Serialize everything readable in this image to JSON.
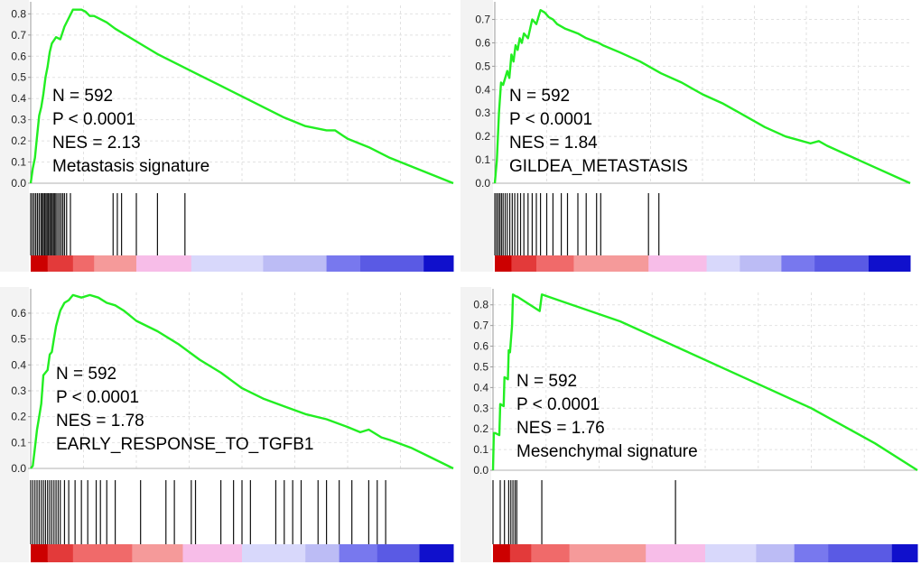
{
  "chart_data": [
    {
      "type": "line",
      "title": "",
      "xlabel": "",
      "ylabel": "",
      "ylim": [
        0,
        0.84
      ],
      "yticks": [
        0.0,
        0.1,
        0.2,
        0.3,
        0.4,
        0.5,
        0.6,
        0.7,
        0.8
      ],
      "xlim": [
        0,
        1
      ],
      "grid": true,
      "line_color": "#22ee22",
      "annotations": [
        "N = 592",
        "P < 0.0001",
        "NES = 2.13",
        "Metastasis signature"
      ],
      "series": [
        {
          "values_x": [
            0.0,
            0.005,
            0.01,
            0.015,
            0.02,
            0.025,
            0.03,
            0.035,
            0.04,
            0.045,
            0.05,
            0.06,
            0.07,
            0.08,
            0.09,
            0.1,
            0.11,
            0.12,
            0.13,
            0.14,
            0.15,
            0.16,
            0.18,
            0.2,
            0.25,
            0.3,
            0.35,
            0.4,
            0.45,
            0.5,
            0.55,
            0.6,
            0.65,
            0.7,
            0.72,
            0.75,
            0.8,
            0.85,
            0.9,
            0.95,
            1.0
          ],
          "values_y": [
            0.0,
            0.07,
            0.12,
            0.22,
            0.32,
            0.36,
            0.42,
            0.5,
            0.55,
            0.62,
            0.66,
            0.69,
            0.68,
            0.74,
            0.78,
            0.82,
            0.82,
            0.82,
            0.81,
            0.79,
            0.79,
            0.78,
            0.76,
            0.73,
            0.67,
            0.61,
            0.56,
            0.51,
            0.46,
            0.41,
            0.36,
            0.31,
            0.27,
            0.25,
            0.25,
            0.21,
            0.17,
            0.12,
            0.08,
            0.04,
            0.0
          ]
        }
      ],
      "hits": [
        0.0,
        0.004,
        0.008,
        0.012,
        0.016,
        0.02,
        0.024,
        0.027,
        0.03,
        0.033,
        0.036,
        0.039,
        0.042,
        0.045,
        0.048,
        0.051,
        0.054,
        0.057,
        0.06,
        0.064,
        0.068,
        0.072,
        0.076,
        0.08,
        0.085,
        0.094,
        0.195,
        0.205,
        0.215,
        0.25,
        0.3,
        0.365
      ],
      "colorbar": [
        "#cc0000",
        "#e33a3a",
        "#f06a6a",
        "#f59a9a",
        "#f7bde8",
        "#d8d8fb",
        "#bcbcf5",
        "#7878ee",
        "#5a5ae4",
        "#1010cc"
      ],
      "colorbar_breaks": [
        0.0,
        0.04,
        0.1,
        0.15,
        0.25,
        0.38,
        0.55,
        0.7,
        0.78,
        0.93,
        1.0
      ]
    },
    {
      "type": "line",
      "title": "",
      "xlabel": "",
      "ylabel": "",
      "ylim": [
        0,
        0.76
      ],
      "yticks": [
        0.0,
        0.1,
        0.2,
        0.3,
        0.4,
        0.5,
        0.6,
        0.7
      ],
      "xlim": [
        0,
        1
      ],
      "grid": true,
      "line_color": "#22ee22",
      "annotations": [
        "N = 592",
        "P < 0.0001",
        "NES = 1.84",
        "GILDEA_METASTASIS"
      ],
      "series": [
        {
          "values_x": [
            0.0,
            0.005,
            0.01,
            0.015,
            0.02,
            0.03,
            0.035,
            0.04,
            0.045,
            0.05,
            0.055,
            0.06,
            0.065,
            0.07,
            0.08,
            0.09,
            0.1,
            0.11,
            0.12,
            0.13,
            0.14,
            0.15,
            0.16,
            0.17,
            0.2,
            0.22,
            0.25,
            0.26,
            0.3,
            0.35,
            0.4,
            0.45,
            0.5,
            0.55,
            0.6,
            0.65,
            0.7,
            0.74,
            0.76,
            0.78,
            0.8,
            0.9,
            1.0
          ],
          "values_y": [
            0.0,
            0.1,
            0.3,
            0.43,
            0.42,
            0.48,
            0.45,
            0.55,
            0.52,
            0.59,
            0.57,
            0.62,
            0.6,
            0.64,
            0.62,
            0.7,
            0.68,
            0.74,
            0.73,
            0.71,
            0.7,
            0.68,
            0.67,
            0.66,
            0.64,
            0.62,
            0.6,
            0.59,
            0.56,
            0.52,
            0.47,
            0.43,
            0.38,
            0.34,
            0.29,
            0.24,
            0.2,
            0.18,
            0.17,
            0.18,
            0.16,
            0.08,
            0.0
          ]
        }
      ],
      "hits": [
        0.0,
        0.004,
        0.008,
        0.012,
        0.016,
        0.02,
        0.025,
        0.03,
        0.036,
        0.042,
        0.048,
        0.055,
        0.062,
        0.07,
        0.08,
        0.09,
        0.1,
        0.11,
        0.125,
        0.14,
        0.16,
        0.175,
        0.2,
        0.22,
        0.245,
        0.255,
        0.37,
        0.395
      ],
      "colorbar": [
        "#cc0000",
        "#e33a3a",
        "#f06a6a",
        "#f59a9a",
        "#f7bde8",
        "#d8d8fb",
        "#bcbcf5",
        "#7878ee",
        "#5a5ae4",
        "#1010cc"
      ],
      "colorbar_breaks": [
        0.0,
        0.04,
        0.1,
        0.19,
        0.37,
        0.51,
        0.59,
        0.69,
        0.77,
        0.9,
        1.0
      ]
    },
    {
      "type": "line",
      "title": "",
      "xlabel": "",
      "ylabel": "",
      "ylim": [
        0,
        0.68
      ],
      "yticks": [
        0.0,
        0.1,
        0.2,
        0.3,
        0.4,
        0.5,
        0.6
      ],
      "xlim": [
        0,
        1
      ],
      "grid": true,
      "line_color": "#22ee22",
      "annotations": [
        "N = 592",
        "P < 0.0001",
        "NES = 1.78",
        "EARLY_RESPONSE_TO_TGFB1"
      ],
      "series": [
        {
          "values_x": [
            0.0,
            0.005,
            0.01,
            0.015,
            0.02,
            0.025,
            0.03,
            0.04,
            0.045,
            0.05,
            0.055,
            0.06,
            0.065,
            0.07,
            0.08,
            0.09,
            0.1,
            0.12,
            0.14,
            0.16,
            0.18,
            0.2,
            0.22,
            0.25,
            0.3,
            0.35,
            0.4,
            0.45,
            0.5,
            0.55,
            0.6,
            0.65,
            0.7,
            0.75,
            0.78,
            0.8,
            0.83,
            0.85,
            0.9,
            0.95,
            1.0
          ],
          "values_y": [
            0.0,
            0.01,
            0.08,
            0.15,
            0.2,
            0.25,
            0.36,
            0.38,
            0.44,
            0.45,
            0.5,
            0.55,
            0.58,
            0.61,
            0.64,
            0.65,
            0.67,
            0.66,
            0.67,
            0.66,
            0.64,
            0.63,
            0.61,
            0.57,
            0.53,
            0.48,
            0.42,
            0.37,
            0.31,
            0.27,
            0.24,
            0.21,
            0.19,
            0.16,
            0.14,
            0.15,
            0.12,
            0.11,
            0.08,
            0.04,
            0.0
          ]
        }
      ],
      "hits": [
        0.0,
        0.005,
        0.01,
        0.015,
        0.02,
        0.025,
        0.03,
        0.035,
        0.04,
        0.045,
        0.05,
        0.055,
        0.06,
        0.065,
        0.07,
        0.08,
        0.09,
        0.105,
        0.12,
        0.135,
        0.155,
        0.165,
        0.18,
        0.2,
        0.26,
        0.32,
        0.34,
        0.38,
        0.39,
        0.45,
        0.48,
        0.5,
        0.52,
        0.58,
        0.6,
        0.62,
        0.64,
        0.68,
        0.7,
        0.73,
        0.76,
        0.8,
        0.82,
        0.84
      ],
      "colorbar": [
        "#cc0000",
        "#e33a3a",
        "#f06a6a",
        "#f59a9a",
        "#f7bde8",
        "#d8d8fb",
        "#bcbcf5",
        "#7878ee",
        "#5a5ae4",
        "#1010cc"
      ],
      "colorbar_breaks": [
        0.0,
        0.04,
        0.1,
        0.24,
        0.36,
        0.5,
        0.65,
        0.73,
        0.82,
        0.92,
        1.0
      ]
    },
    {
      "type": "line",
      "title": "",
      "xlabel": "",
      "ylabel": "",
      "ylim": [
        0,
        0.86
      ],
      "yticks": [
        0.0,
        0.1,
        0.2,
        0.3,
        0.4,
        0.5,
        0.6,
        0.7,
        0.8
      ],
      "xlim": [
        0,
        1
      ],
      "grid": true,
      "line_color": "#22ee22",
      "annotations": [
        "N = 592",
        "P < 0.0001",
        "NES = 1.76",
        "Mesenchymal signature"
      ],
      "series": [
        {
          "values_x": [
            0.0,
            0.002,
            0.005,
            0.015,
            0.017,
            0.025,
            0.027,
            0.035,
            0.037,
            0.04,
            0.045,
            0.047,
            0.055,
            0.057,
            0.11,
            0.115,
            0.3,
            0.45,
            0.6,
            0.75,
            0.9,
            1.0
          ],
          "values_y": [
            0.0,
            0.18,
            0.18,
            0.17,
            0.32,
            0.31,
            0.45,
            0.44,
            0.58,
            0.57,
            0.7,
            0.85,
            0.84,
            0.84,
            0.77,
            0.85,
            0.72,
            0.58,
            0.44,
            0.3,
            0.13,
            0.0
          ]
        }
      ],
      "hits": [
        0.0,
        0.017,
        0.027,
        0.037,
        0.042,
        0.047,
        0.052,
        0.056,
        0.115,
        0.43
      ],
      "colorbar": [
        "#cc0000",
        "#e33a3a",
        "#f06a6a",
        "#f59a9a",
        "#f7bde8",
        "#d8d8fb",
        "#bcbcf5",
        "#7878ee",
        "#5a5ae4",
        "#1010cc"
      ],
      "colorbar_breaks": [
        0.0,
        0.04,
        0.09,
        0.18,
        0.36,
        0.5,
        0.62,
        0.71,
        0.79,
        0.94,
        1.0
      ]
    }
  ]
}
